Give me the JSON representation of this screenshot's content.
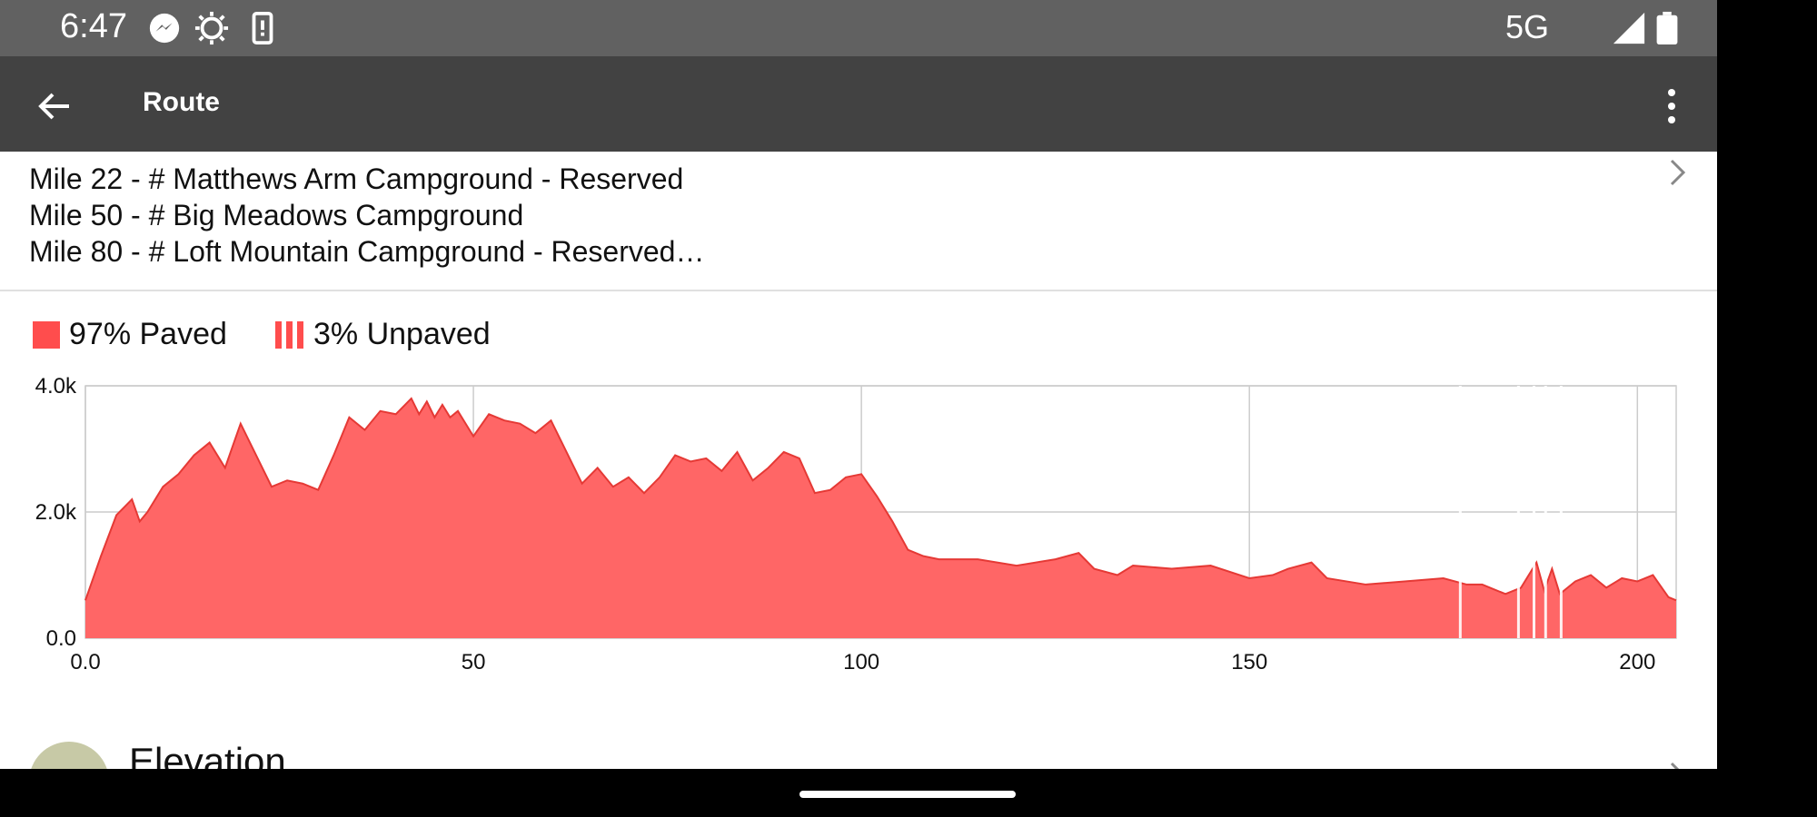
{
  "status_bar": {
    "time": "6:47",
    "network": "5G",
    "icons": [
      "messenger-icon",
      "brightness-icon",
      "phone-alert-icon",
      "signal-icon",
      "battery-icon"
    ]
  },
  "app_bar": {
    "title": "Route",
    "back_icon": "arrow-back-icon",
    "menu_icon": "more-vert-icon"
  },
  "notes": [
    "Mile 22 - # Matthews Arm Campground - Reserved",
    "Mile 50 - # Big Meadows Campground",
    "Mile 80 - # Loft Mountain Campground - Reserved…"
  ],
  "surface_legend": {
    "paved": "97% Paved",
    "unpaved": "3% Unpaved"
  },
  "colors": {
    "accent": "#ff4d4d",
    "area_fill": "#ff6666",
    "grid": "#cccccc"
  },
  "chart_data": {
    "type": "area",
    "x_ticks": [
      "0.0",
      "50",
      "100",
      "150",
      "200"
    ],
    "y_ticks": [
      "0.0",
      "2.0k",
      "4.0k"
    ],
    "xlim": [
      0,
      205
    ],
    "ylim": [
      0,
      4000
    ],
    "grid": true,
    "series": [
      {
        "x": [
          0,
          2,
          4,
          6,
          7,
          8,
          10,
          12,
          14,
          16,
          18,
          20,
          22,
          24,
          26,
          28,
          30,
          32,
          34,
          36,
          38,
          40,
          42,
          43,
          44,
          45,
          46,
          47,
          48,
          50,
          52,
          54,
          56,
          58,
          60,
          62,
          64,
          66,
          68,
          70,
          72,
          74,
          76,
          78,
          80,
          82,
          84,
          86,
          88,
          90,
          92,
          94,
          96,
          98,
          100,
          102,
          104,
          106,
          108,
          110,
          115,
          120,
          125,
          128,
          130,
          133,
          135,
          140,
          145,
          150,
          153,
          155,
          158,
          160,
          165,
          170,
          175,
          178,
          180,
          183,
          185,
          187,
          188,
          189,
          190,
          192,
          194,
          196,
          198,
          200,
          202,
          204,
          205
        ],
        "y": [
          600,
          1300,
          1950,
          2200,
          1850,
          2000,
          2400,
          2600,
          2900,
          3100,
          2700,
          3400,
          2900,
          2400,
          2500,
          2450,
          2350,
          2900,
          3500,
          3300,
          3600,
          3550,
          3800,
          3550,
          3750,
          3500,
          3700,
          3500,
          3600,
          3200,
          3550,
          3450,
          3400,
          3250,
          3450,
          2950,
          2450,
          2700,
          2400,
          2550,
          2300,
          2550,
          2900,
          2800,
          2850,
          2650,
          2950,
          2500,
          2700,
          2950,
          2850,
          2300,
          2350,
          2550,
          2600,
          2250,
          1850,
          1400,
          1300,
          1250,
          1250,
          1150,
          1250,
          1350,
          1100,
          1000,
          1150,
          1100,
          1150,
          950,
          1000,
          1100,
          1200,
          950,
          850,
          900,
          950,
          850,
          850,
          700,
          800,
          1200,
          750,
          1100,
          700,
          900,
          1000,
          800,
          950,
          900,
          1000,
          650,
          600
        ]
      }
    ]
  },
  "elevation_row": {
    "title": "Elevation",
    "icon": "trending-up-icon"
  }
}
